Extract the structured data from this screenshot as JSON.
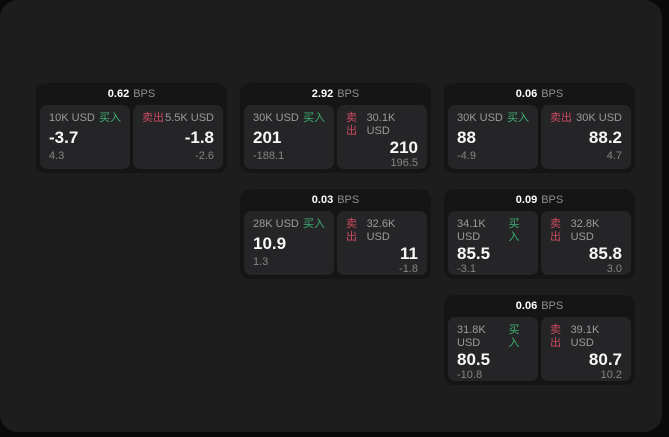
{
  "labels": {
    "buy": "买入",
    "sell": "卖出",
    "bps_unit": "BPS"
  },
  "colors": {
    "buy_green": "#3eb271",
    "sell_red": "#cc4a5e",
    "panel_bg": "#1d1d1e",
    "card_bg": "#151516",
    "tile_bg": "#252527"
  },
  "cards": [
    {
      "bps": "0.62",
      "row": 1,
      "col": 1,
      "buy": {
        "amount": "10K USD",
        "price": "-3.7",
        "delta": "4.3"
      },
      "sell": {
        "amount": "5.5K USD",
        "price": "-1.8",
        "delta": "-2.6"
      }
    },
    {
      "bps": "2.92",
      "row": 1,
      "col": 2,
      "buy": {
        "amount": "30K USD",
        "price": "201",
        "delta": "-188.1"
      },
      "sell": {
        "amount": "30.1K USD",
        "price": "210",
        "delta": "196.5"
      }
    },
    {
      "bps": "0.06",
      "row": 1,
      "col": 3,
      "buy": {
        "amount": "30K USD",
        "price": "88",
        "delta": "-4.9"
      },
      "sell": {
        "amount": "30K USD",
        "price": "88.2",
        "delta": "4.7"
      }
    },
    {
      "bps": "0.03",
      "row": 2,
      "col": 2,
      "buy": {
        "amount": "28K USD",
        "price": "10.9",
        "delta": "1.3"
      },
      "sell": {
        "amount": "32.6K USD",
        "price": "11",
        "delta": "-1.8"
      }
    },
    {
      "bps": "0.09",
      "row": 2,
      "col": 3,
      "buy": {
        "amount": "34.1K USD",
        "price": "85.5",
        "delta": "-3.1"
      },
      "sell": {
        "amount": "32.8K USD",
        "price": "85.8",
        "delta": "3.0"
      }
    },
    {
      "bps": "0.06",
      "row": 3,
      "col": 3,
      "buy": {
        "amount": "31.8K USD",
        "price": "80.5",
        "delta": "-10.8"
      },
      "sell": {
        "amount": "39.1K USD",
        "price": "80.7",
        "delta": "10.2"
      }
    }
  ]
}
